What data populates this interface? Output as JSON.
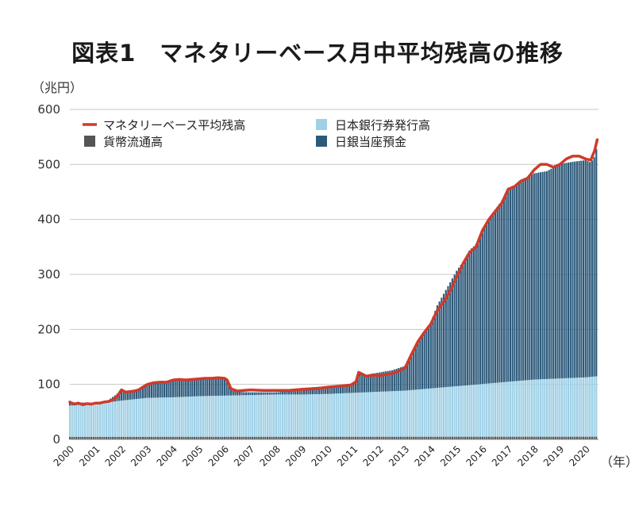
{
  "chart_data": {
    "type": "bar",
    "title": "図表1　マネタリーベース月中平均残高の推移",
    "ylabel": "（兆円）",
    "xunit": "（年）",
    "ylim": [
      0,
      600
    ],
    "yticks": [
      0,
      100,
      200,
      300,
      400,
      500,
      600
    ],
    "xlim": [
      2000,
      2020.5
    ],
    "xticks": [
      "2000",
      "2001",
      "2002",
      "2003",
      "2004",
      "2005",
      "2006",
      "2007",
      "2008",
      "2009",
      "2010",
      "2011",
      "2012",
      "2013",
      "2014",
      "2015",
      "2016",
      "2017",
      "2018",
      "2019",
      "2020"
    ],
    "grid": true,
    "legend_placement": "top-left",
    "series": [
      {
        "name": "マネタリーベース平均残高",
        "kind": "line",
        "color": "#d03a2a",
        "x": [
          2000.0,
          2000.17,
          2000.33,
          2000.5,
          2000.67,
          2000.83,
          2001.0,
          2001.17,
          2001.33,
          2001.5,
          2001.67,
          2001.83,
          2002.0,
          2002.17,
          2002.33,
          2002.5,
          2002.67,
          2002.83,
          2003.0,
          2003.25,
          2003.5,
          2003.75,
          2004.0,
          2004.25,
          2004.5,
          2004.75,
          2005.0,
          2005.25,
          2005.5,
          2005.75,
          2006.0,
          2006.1,
          2006.25,
          2006.5,
          2006.75,
          2007.0,
          2007.5,
          2008.0,
          2008.5,
          2009.0,
          2009.5,
          2010.0,
          2010.5,
          2010.9,
          2011.1,
          2011.2,
          2011.5,
          2011.75,
          2012.0,
          2012.25,
          2012.5,
          2012.75,
          2013.0,
          2013.25,
          2013.5,
          2013.75,
          2014.0,
          2014.25,
          2014.5,
          2014.75,
          2015.0,
          2015.25,
          2015.5,
          2015.75,
          2016.0,
          2016.25,
          2016.5,
          2016.75,
          2017.0,
          2017.25,
          2017.5,
          2017.75,
          2018.0,
          2018.25,
          2018.5,
          2018.75,
          2019.0,
          2019.25,
          2019.5,
          2019.75,
          2020.0,
          2020.2,
          2020.35,
          2020.45
        ],
        "values": [
          68,
          64,
          66,
          63,
          65,
          64,
          66,
          66,
          68,
          69,
          72,
          78,
          90,
          86,
          87,
          88,
          90,
          95,
          100,
          103,
          104,
          104,
          108,
          109,
          108,
          109,
          110,
          111,
          111,
          112,
          111,
          108,
          92,
          88,
          89,
          90,
          89,
          89,
          89,
          91,
          92,
          95,
          97,
          99,
          105,
          122,
          115,
          117,
          116,
          118,
          120,
          124,
          130,
          155,
          178,
          195,
          210,
          235,
          250,
          270,
          295,
          320,
          340,
          350,
          380,
          400,
          415,
          430,
          455,
          460,
          470,
          475,
          490,
          500,
          500,
          495,
          500,
          510,
          515,
          515,
          510,
          508,
          525,
          545
        ]
      },
      {
        "name": "日本銀行券発行高",
        "kind": "bar",
        "color": "#9fd0e6",
        "x": [
          2000,
          2001,
          2002,
          2003,
          2004,
          2005,
          2006,
          2007,
          2008,
          2009,
          2010,
          2011,
          2012,
          2013,
          2014,
          2015,
          2016,
          2017,
          2018,
          2019,
          2020,
          2020.45
        ],
        "values": [
          57,
          60,
          66,
          71,
          72,
          74,
          75,
          76,
          77,
          77,
          78,
          80,
          82,
          84,
          88,
          92,
          96,
          100,
          104,
          106,
          108,
          110
        ]
      },
      {
        "name": "貨幣流通高",
        "kind": "bar",
        "color": "#555555",
        "x": [
          2000,
          2020.45
        ],
        "values": [
          4.5,
          4.8
        ]
      },
      {
        "name": "日銀当座預金",
        "kind": "bar",
        "color": "#2d5a7b",
        "x": [
          2000.0,
          2000.5,
          2001.0,
          2001.5,
          2002.0,
          2002.5,
          2003.0,
          2003.5,
          2004.0,
          2004.5,
          2005.0,
          2005.5,
          2006.0,
          2006.1,
          2006.25,
          2006.5,
          2007.0,
          2008.0,
          2008.5,
          2009.0,
          2010.0,
          2010.5,
          2010.9,
          2011.1,
          2011.2,
          2011.5,
          2012.0,
          2012.5,
          2013.0,
          2013.25,
          2013.5,
          2013.75,
          2014.0,
          2014.25,
          2014.5,
          2014.75,
          2015.0,
          2015.25,
          2015.5,
          2015.75,
          2016.0,
          2016.25,
          2016.5,
          2016.75,
          2017.0,
          2017.25,
          2017.5,
          2017.75,
          2018.0,
          2018.5,
          2019.0,
          2019.5,
          2020.0,
          2020.2,
          2020.35,
          2020.45
        ],
        "values": [
          6,
          4,
          2,
          4,
          18,
          15,
          25,
          28,
          30,
          30,
          31,
          31,
          32,
          28,
          10,
          6,
          5,
          4,
          6,
          12,
          14,
          15,
          16,
          22,
          38,
          32,
          35,
          38,
          45,
          65,
          85,
          105,
          120,
          150,
          170,
          190,
          210,
          225,
          245,
          255,
          275,
          300,
          315,
          330,
          350,
          355,
          365,
          370,
          375,
          378,
          390,
          393,
          395,
          390,
          400,
          420
        ]
      }
    ]
  },
  "page": {
    "title": "図表1　マネタリーベース月中平均残高の推移",
    "unit_label": "（兆円）",
    "year_unit": "（年）"
  }
}
